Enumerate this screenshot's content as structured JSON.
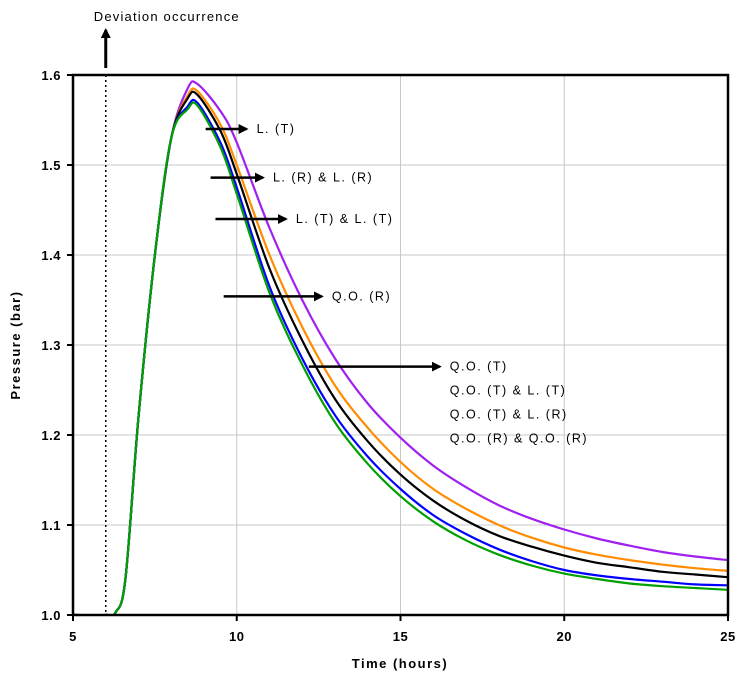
{
  "chart_data": {
    "type": "line",
    "title": "",
    "xlabel": "Time (hours)",
    "ylabel": "Pressure (bar)",
    "xlim": [
      5,
      25
    ],
    "ylim": [
      1.0,
      1.6
    ],
    "xticks": [
      "5",
      "10",
      "15",
      "20",
      "25"
    ],
    "yticks": [
      "1.0",
      "1.1",
      "1.2",
      "1.3",
      "1.4",
      "1.5",
      "1.6"
    ],
    "grid": true,
    "deviation": {
      "label": "Deviation occurrence",
      "x": 6
    },
    "series": [
      {
        "color": "#a020f0",
        "x": [
          5,
          6,
          6.3,
          6.6,
          7,
          7.5,
          8,
          8.5,
          8.8,
          9.5,
          10,
          11,
          12,
          13,
          14,
          15,
          16,
          17,
          18,
          19,
          20,
          21,
          22,
          23,
          24,
          25
        ],
        "y": [
          1.0,
          1.0,
          1.003,
          1.04,
          1.22,
          1.4,
          1.53,
          1.585,
          1.59,
          1.56,
          1.525,
          1.43,
          1.35,
          1.285,
          1.235,
          1.197,
          1.166,
          1.142,
          1.122,
          1.107,
          1.095,
          1.085,
          1.077,
          1.07,
          1.065,
          1.061
        ]
      },
      {
        "color": "#ff8c00",
        "x": [
          5,
          6,
          6.3,
          6.6,
          7,
          7.5,
          8,
          8.5,
          8.8,
          9.5,
          10,
          11,
          12,
          13,
          14,
          15,
          16,
          17,
          18,
          19,
          20,
          21,
          22,
          23,
          24,
          25
        ],
        "y": [
          1.0,
          1.0,
          1.003,
          1.04,
          1.22,
          1.4,
          1.53,
          1.577,
          1.582,
          1.545,
          1.5,
          1.4,
          1.32,
          1.255,
          1.208,
          1.17,
          1.14,
          1.118,
          1.1,
          1.086,
          1.075,
          1.067,
          1.061,
          1.056,
          1.052,
          1.049
        ]
      },
      {
        "color": "#000000",
        "x": [
          5,
          6,
          6.3,
          6.6,
          7,
          7.5,
          8,
          8.5,
          8.8,
          9.5,
          10,
          11,
          12,
          13,
          14,
          15,
          16,
          17,
          18,
          19,
          20,
          21,
          22,
          23,
          24,
          25
        ],
        "y": [
          1.0,
          1.0,
          1.003,
          1.04,
          1.22,
          1.4,
          1.53,
          1.574,
          1.578,
          1.538,
          1.49,
          1.385,
          1.305,
          1.24,
          1.193,
          1.156,
          1.127,
          1.105,
          1.088,
          1.076,
          1.066,
          1.058,
          1.053,
          1.048,
          1.045,
          1.042
        ]
      },
      {
        "color": "#0000ff",
        "x": [
          5,
          6,
          6.3,
          6.6,
          7,
          7.5,
          8,
          8.5,
          8.8,
          9.5,
          10,
          11,
          12,
          13,
          14,
          15,
          16,
          17,
          18,
          19,
          20,
          21,
          22,
          23,
          24,
          25
        ],
        "y": [
          1.0,
          1.0,
          1.003,
          1.04,
          1.22,
          1.4,
          1.53,
          1.565,
          1.569,
          1.525,
          1.475,
          1.365,
          1.285,
          1.222,
          1.176,
          1.14,
          1.111,
          1.09,
          1.073,
          1.06,
          1.05,
          1.044,
          1.04,
          1.037,
          1.034,
          1.033
        ]
      },
      {
        "color": "#00a000",
        "x": [
          5,
          6,
          6.3,
          6.6,
          7,
          7.5,
          8,
          8.5,
          8.8,
          9.5,
          10,
          11,
          12,
          13,
          14,
          15,
          16,
          17,
          18,
          19,
          20,
          21,
          22,
          23,
          24,
          25
        ],
        "y": [
          1.0,
          1.0,
          1.003,
          1.04,
          1.22,
          1.4,
          1.53,
          1.562,
          1.566,
          1.52,
          1.468,
          1.358,
          1.278,
          1.214,
          1.168,
          1.132,
          1.104,
          1.083,
          1.067,
          1.055,
          1.046,
          1.04,
          1.035,
          1.032,
          1.03,
          1.028
        ]
      }
    ],
    "annotations": [
      {
        "lines": [
          "L. (T)"
        ],
        "arrow_from": [
          9.05,
          1.54
        ],
        "arrow_to": [
          10.3,
          1.54
        ]
      },
      {
        "lines": [
          "L. (R) & L. (R)"
        ],
        "arrow_from": [
          9.2,
          1.486
        ],
        "arrow_to": [
          10.8,
          1.486
        ]
      },
      {
        "lines": [
          "L. (T) & L. (T)"
        ],
        "arrow_from": [
          9.35,
          1.44
        ],
        "arrow_to": [
          11.5,
          1.44
        ]
      },
      {
        "lines": [
          "Q.O. (R)"
        ],
        "arrow_from": [
          9.6,
          1.354
        ],
        "arrow_to": [
          12.6,
          1.354
        ]
      },
      {
        "lines": [
          "Q.O. (T)",
          "Q.O. (T) & L. (T)",
          "Q.O. (T) & L. (R)",
          "Q.O. (R) & Q.O. (R)"
        ],
        "arrow_from": [
          12.2,
          1.276
        ],
        "arrow_to": [
          16.2,
          1.276
        ]
      }
    ]
  }
}
